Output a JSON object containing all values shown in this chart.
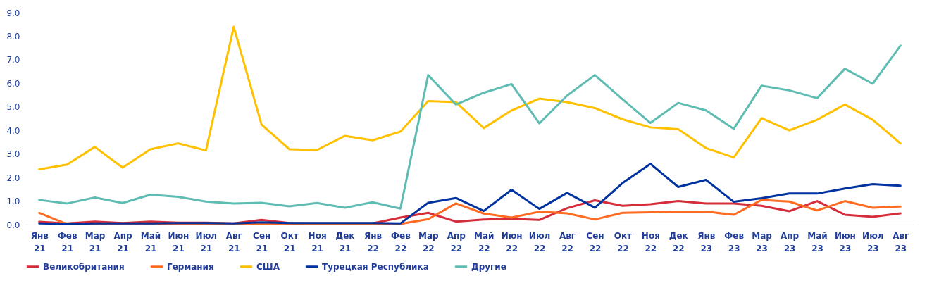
{
  "chart_data": {
    "type": "line",
    "categories": [
      "Янв 21",
      "Фев 21",
      "Мар 21",
      "Апр 21",
      "Май 21",
      "Июн 21",
      "Июл 21",
      "Авг 21",
      "Сен 21",
      "Окт 21",
      "Ноя 21",
      "Дек 21",
      "Янв 22",
      "Фев 22",
      "Мар 22",
      "Апр 22",
      "Май 22",
      "Июн 22",
      "Июл 22",
      "Авг 22",
      "Сен 22",
      "Окт 22",
      "Ноя 22",
      "Дек 22",
      "Янв 23",
      "Фев 23",
      "Мар 23",
      "Апр 23",
      "Май 23",
      "Июн 23",
      "Июл 23",
      "Авг 23"
    ],
    "series": [
      {
        "name": "Великобритания",
        "color": "#d62d3a",
        "values": [
          0.12,
          0.05,
          0.13,
          0.07,
          0.13,
          0.08,
          0.08,
          0.05,
          0.2,
          0.07,
          0.05,
          0.05,
          0.05,
          0.3,
          0.5,
          0.13,
          0.22,
          0.25,
          0.2,
          0.7,
          1.03,
          0.8,
          0.87,
          1.0,
          0.9,
          0.9,
          0.8,
          0.57,
          1.0,
          0.42,
          0.33,
          0.48
        ]
      },
      {
        "name": "Германия",
        "color": "#ff6b21",
        "values": [
          0.5,
          0.02,
          0.02,
          0.02,
          0.02,
          0.03,
          0.02,
          0.02,
          0.02,
          0.02,
          0.02,
          0.02,
          0.02,
          0.03,
          0.23,
          0.9,
          0.47,
          0.3,
          0.55,
          0.48,
          0.22,
          0.5,
          0.52,
          0.55,
          0.55,
          0.42,
          1.05,
          0.98,
          0.6,
          1.0,
          0.72,
          0.77
        ]
      },
      {
        "name": "США",
        "color": "#ffc000",
        "values": [
          2.35,
          2.55,
          3.3,
          2.42,
          3.2,
          3.45,
          3.15,
          8.4,
          4.25,
          3.2,
          3.17,
          3.77,
          3.58,
          3.95,
          5.25,
          5.2,
          4.1,
          4.85,
          5.35,
          5.2,
          4.95,
          4.47,
          4.13,
          4.05,
          3.25,
          2.85,
          4.52,
          4.0,
          4.45,
          5.1,
          4.45,
          3.45
        ]
      },
      {
        "name": "Турецкая Республика",
        "color": "#0033a0",
        "values": [
          0.05,
          0.03,
          0.05,
          0.05,
          0.05,
          0.07,
          0.07,
          0.05,
          0.1,
          0.07,
          0.07,
          0.07,
          0.07,
          0.05,
          0.93,
          1.13,
          0.58,
          1.48,
          0.67,
          1.35,
          0.72,
          1.77,
          2.58,
          1.6,
          1.9,
          0.97,
          1.12,
          1.32,
          1.32,
          1.53,
          1.72,
          1.65
        ]
      },
      {
        "name": "Другие",
        "color": "#5fbcb3",
        "values": [
          1.05,
          0.9,
          1.15,
          0.92,
          1.27,
          1.18,
          0.98,
          0.9,
          0.93,
          0.78,
          0.92,
          0.72,
          0.95,
          0.68,
          6.35,
          5.1,
          5.6,
          5.97,
          4.3,
          5.48,
          6.35,
          5.32,
          4.32,
          5.17,
          4.85,
          4.07,
          5.9,
          5.7,
          5.37,
          6.62,
          5.98,
          7.6
        ]
      }
    ],
    "ylim": [
      0,
      9
    ],
    "yticks": [
      {
        "value": 0,
        "label": "0.0"
      },
      {
        "value": 1,
        "label": "1.0"
      },
      {
        "value": 2,
        "label": "2.0"
      },
      {
        "value": 3,
        "label": "3.0"
      },
      {
        "value": 4,
        "label": "4.0"
      },
      {
        "value": 5,
        "label": "5.0"
      },
      {
        "value": 6,
        "label": "6.0"
      },
      {
        "value": 7,
        "label": "7.0"
      },
      {
        "value": 8,
        "label": "8.0"
      },
      {
        "value": 9,
        "label": "9.0"
      }
    ],
    "grid": false,
    "legend": "bottom",
    "marker": "none",
    "line_style": "solid"
  }
}
